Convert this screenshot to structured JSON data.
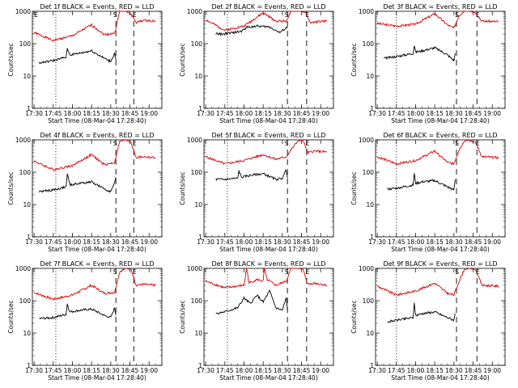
{
  "figure": {
    "start_time_label": "Start Time (08-Mar-04 17:28:40)",
    "ylabel": "Counts/sec",
    "colors": {
      "events": "#000000",
      "lld": "#dd0000",
      "axes": "#000000",
      "background": "#ffffff"
    }
  },
  "chart_data": [
    {
      "type": "line",
      "title": "Det 1f BLACK = Events, RED = LLD",
      "xlabel": "Start Time (08-Mar-04 17:28:40)",
      "ylabel": "Counts/sec",
      "x_ticks": [
        "17:30",
        "17:45",
        "18:00",
        "18:15",
        "18:30",
        "18:45",
        "19:00"
      ],
      "y_ticks": [
        "1",
        "10",
        "100",
        "1000"
      ],
      "ylim": [
        1,
        1000
      ],
      "y_scale": "log",
      "time_range": [
        "17:28:40",
        "19:10:00"
      ],
      "vlines": [
        {
          "time": "17:47",
          "style": "dotted"
        },
        {
          "time": "18:34",
          "style": "dashed"
        },
        {
          "time": "18:48",
          "style": "dashed"
        }
      ],
      "markers": [
        {
          "label": "S",
          "time": "18:34"
        },
        {
          "label": "E",
          "time": "18:48"
        },
        {
          "label": "E",
          "time": "17:31"
        }
      ],
      "series": [
        {
          "name": "LLD",
          "color": "#dd0000",
          "x": [
            "17:30",
            "17:45",
            "18:00",
            "18:15",
            "18:25",
            "18:33",
            "18:37",
            "18:42",
            "18:46",
            "18:50",
            "18:55",
            "19:05"
          ],
          "y": [
            220,
            125,
            175,
            380,
            190,
            210,
            1000,
            1000,
            800,
            450,
            520,
            500
          ]
        },
        {
          "name": "Events",
          "color": "#000000",
          "x": [
            "17:34",
            "17:45",
            "17:55",
            "17:56",
            "17:58",
            "18:05",
            "18:15",
            "18:25",
            "18:30",
            "18:33",
            "18:34"
          ],
          "y": [
            25,
            30,
            38,
            70,
            45,
            50,
            60,
            35,
            28,
            50,
            32
          ]
        }
      ]
    },
    {
      "type": "line",
      "title": "Det 2f BLACK = Events, RED = LLD",
      "xlabel": "Start Time (08-Mar-04 17:28:40)",
      "ylabel": "Counts/sec",
      "x_ticks": [
        "17:30",
        "17:45",
        "18:00",
        "18:15",
        "18:30",
        "18:45",
        "19:00"
      ],
      "y_ticks": [
        "1",
        "10",
        "100",
        "1000"
      ],
      "ylim": [
        1,
        1000
      ],
      "y_scale": "log",
      "time_range": [
        "17:28:40",
        "19:10:00"
      ],
      "vlines": [
        {
          "time": "17:47",
          "style": "dotted"
        },
        {
          "time": "18:34",
          "style": "dashed"
        },
        {
          "time": "18:49",
          "style": "dashed"
        }
      ],
      "markers": [
        {
          "label": "S",
          "time": "18:34"
        },
        {
          "label": "E",
          "time": "18:49"
        }
      ],
      "series": [
        {
          "name": "LLD",
          "color": "#dd0000",
          "x": [
            "17:30",
            "17:45",
            "18:00",
            "18:15",
            "18:25",
            "18:33",
            "18:37",
            "18:44",
            "18:48",
            "18:52",
            "18:58",
            "19:05"
          ],
          "y": [
            550,
            260,
            350,
            900,
            500,
            500,
            1000,
            1000,
            900,
            450,
            480,
            500
          ]
        },
        {
          "name": "Events",
          "color": "#000000",
          "x": [
            "17:38",
            "17:45",
            "17:58",
            "18:02",
            "18:10",
            "18:20",
            "18:28",
            "18:33",
            "18:34"
          ],
          "y": [
            200,
            200,
            240,
            320,
            350,
            330,
            220,
            300,
            340
          ]
        }
      ]
    },
    {
      "type": "line",
      "title": "Det 3f BLACK = Events, RED = LLD",
      "xlabel": "Start Time (08-Mar-04 17:28:40)",
      "ylabel": "Counts/sec",
      "x_ticks": [
        "17:30",
        "17:45",
        "18:00",
        "18:15",
        "18:30",
        "18:45",
        "19:00"
      ],
      "y_ticks": [
        "1",
        "10",
        "100",
        "1000"
      ],
      "ylim": [
        1,
        1000
      ],
      "y_scale": "log",
      "time_range": [
        "17:28:40",
        "19:10:00"
      ],
      "vlines": [
        {
          "time": "17:45",
          "style": "dotted"
        },
        {
          "time": "18:32",
          "style": "dashed"
        },
        {
          "time": "18:48",
          "style": "dashed"
        }
      ],
      "markers": [
        {
          "label": "S",
          "time": "18:33"
        },
        {
          "label": "E",
          "time": "18:48"
        }
      ],
      "series": [
        {
          "name": "LLD",
          "color": "#dd0000",
          "x": [
            "17:30",
            "17:45",
            "18:00",
            "18:15",
            "18:25",
            "18:30",
            "18:34",
            "18:38",
            "18:42",
            "18:47",
            "18:52",
            "19:05"
          ],
          "y": [
            420,
            350,
            400,
            850,
            380,
            300,
            750,
            1000,
            1000,
            900,
            500,
            480
          ]
        },
        {
          "name": "Events",
          "color": "#000000",
          "x": [
            "17:35",
            "17:45",
            "17:58",
            "17:59",
            "18:00",
            "18:05",
            "18:15",
            "18:25",
            "18:30",
            "18:31"
          ],
          "y": [
            35,
            40,
            50,
            90,
            55,
            60,
            75,
            45,
            30,
            50
          ]
        }
      ]
    },
    {
      "type": "line",
      "title": "Det 4f BLACK = Events, RED = LLD",
      "xlabel": "Start Time (08-Mar-04 17:28:40)",
      "ylabel": "Counts/sec",
      "x_ticks": [
        "17:30",
        "17:45",
        "18:00",
        "18:15",
        "18:30",
        "18:45",
        "19:00"
      ],
      "y_ticks": [
        "1",
        "10",
        "100",
        "1000"
      ],
      "ylim": [
        1,
        1000
      ],
      "y_scale": "log",
      "time_range": [
        "17:28:40",
        "19:10:00"
      ],
      "vlines": [
        {
          "time": "17:47",
          "style": "dotted"
        },
        {
          "time": "18:34",
          "style": "dashed"
        },
        {
          "time": "18:48",
          "style": "dashed"
        }
      ],
      "markers": [
        {
          "label": "S",
          "time": "18:34"
        },
        {
          "label": "E",
          "time": "18:48"
        }
      ],
      "series": [
        {
          "name": "LLD",
          "color": "#dd0000",
          "x": [
            "17:30",
            "17:45",
            "18:00",
            "18:15",
            "18:25",
            "18:33",
            "18:37",
            "18:42",
            "18:46",
            "18:50",
            "18:55",
            "19:05"
          ],
          "y": [
            220,
            120,
            160,
            350,
            170,
            200,
            900,
            1000,
            800,
            280,
            300,
            280
          ]
        },
        {
          "name": "Events",
          "color": "#000000",
          "x": [
            "17:34",
            "17:45",
            "17:55",
            "17:56",
            "17:58",
            "18:05",
            "18:15",
            "18:25",
            "18:30",
            "18:33",
            "18:34"
          ],
          "y": [
            25,
            28,
            35,
            90,
            40,
            45,
            50,
            30,
            25,
            45,
            70
          ]
        }
      ]
    },
    {
      "type": "line",
      "title": "Det 5f BLACK = Events, RED = LLD",
      "xlabel": "Start Time (08-Mar-04 17:28:40)",
      "ylabel": "Counts/sec",
      "x_ticks": [
        "17:30",
        "17:45",
        "18:00",
        "18:15",
        "18:30",
        "18:45",
        "19:00"
      ],
      "y_ticks": [
        "1",
        "10",
        "100",
        "1000"
      ],
      "ylim": [
        1,
        1000
      ],
      "y_scale": "log",
      "time_range": [
        "17:28:40",
        "19:10:00"
      ],
      "vlines": [
        {
          "time": "17:47",
          "style": "dotted"
        },
        {
          "time": "18:34",
          "style": "dashed"
        },
        {
          "time": "18:49",
          "style": "dashed"
        }
      ],
      "markers": [
        {
          "label": "S",
          "time": "18:34"
        },
        {
          "label": "E",
          "time": "18:49"
        }
      ],
      "series": [
        {
          "name": "LLD",
          "color": "#dd0000",
          "x": [
            "17:30",
            "17:45",
            "18:00",
            "18:15",
            "18:25",
            "18:33",
            "18:37",
            "18:42",
            "18:46",
            "18:50",
            "18:55",
            "19:05"
          ],
          "y": [
            300,
            180,
            230,
            350,
            250,
            300,
            500,
            900,
            1000,
            400,
            450,
            420
          ]
        },
        {
          "name": "Events",
          "color": "#000000",
          "x": [
            "17:38",
            "17:45",
            "17:55",
            "17:56",
            "17:58",
            "18:05",
            "18:15",
            "18:25",
            "18:30",
            "18:33",
            "18:34"
          ],
          "y": [
            60,
            60,
            65,
            110,
            70,
            80,
            90,
            60,
            65,
            120,
            65
          ]
        }
      ]
    },
    {
      "type": "line",
      "title": "Det 6f BLACK = Events, RED = LLD",
      "xlabel": "Start Time (08-Mar-04 17:28:40)",
      "ylabel": "Counts/sec",
      "x_ticks": [
        "17:30",
        "17:45",
        "18:00",
        "18:15",
        "18:30",
        "18:45",
        "19:00"
      ],
      "y_ticks": [
        "1",
        "10",
        "100",
        "1000"
      ],
      "ylim": [
        1,
        1000
      ],
      "y_scale": "log",
      "time_range": [
        "17:28:40",
        "19:10:00"
      ],
      "vlines": [
        {
          "time": "17:45",
          "style": "dotted"
        },
        {
          "time": "18:32",
          "style": "dashed"
        },
        {
          "time": "18:48",
          "style": "dashed"
        }
      ],
      "markers": [
        {
          "label": "S",
          "time": "18:33"
        },
        {
          "label": "E",
          "time": "18:48"
        }
      ],
      "series": [
        {
          "name": "LLD",
          "color": "#dd0000",
          "x": [
            "17:30",
            "17:45",
            "18:00",
            "18:15",
            "18:25",
            "18:30",
            "18:34",
            "18:38",
            "18:42",
            "18:47",
            "18:52",
            "19:05"
          ],
          "y": [
            300,
            180,
            230,
            450,
            200,
            180,
            500,
            900,
            1000,
            800,
            300,
            280
          ]
        },
        {
          "name": "Events",
          "color": "#000000",
          "x": [
            "17:38",
            "17:45",
            "17:58",
            "17:59",
            "18:00",
            "18:05",
            "18:15",
            "18:25",
            "18:30",
            "18:31"
          ],
          "y": [
            30,
            32,
            40,
            90,
            45,
            50,
            55,
            35,
            28,
            60
          ]
        }
      ]
    },
    {
      "type": "line",
      "title": "Det 7f BLACK = Events, RED = LLD",
      "xlabel": "Start Time (08-Mar-04 17:28:40)",
      "ylabel": "Counts/sec",
      "x_ticks": [
        "17:30",
        "17:45",
        "18:00",
        "18:15",
        "18:30",
        "18:45",
        "19:00"
      ],
      "y_ticks": [
        "1",
        "10",
        "100",
        "1000"
      ],
      "ylim": [
        1,
        1000
      ],
      "y_scale": "log",
      "time_range": [
        "17:28:40",
        "19:10:00"
      ],
      "vlines": [
        {
          "time": "17:47",
          "style": "dotted"
        },
        {
          "time": "18:34",
          "style": "dashed"
        },
        {
          "time": "18:48",
          "style": "dashed"
        }
      ],
      "markers": [
        {
          "label": "S",
          "time": "18:34"
        },
        {
          "label": "E",
          "time": "18:48"
        }
      ],
      "series": [
        {
          "name": "LLD",
          "color": "#dd0000",
          "x": [
            "17:30",
            "17:45",
            "18:00",
            "18:15",
            "18:25",
            "18:33",
            "18:37",
            "18:42",
            "18:46",
            "18:50",
            "18:55",
            "19:05"
          ],
          "y": [
            180,
            110,
            150,
            300,
            170,
            180,
            800,
            1000,
            900,
            300,
            320,
            300
          ]
        },
        {
          "name": "Events",
          "color": "#000000",
          "x": [
            "17:34",
            "17:45",
            "17:55",
            "17:56",
            "17:58",
            "18:05",
            "18:15",
            "18:25",
            "18:30",
            "18:33",
            "18:34"
          ],
          "y": [
            28,
            30,
            38,
            80,
            45,
            50,
            55,
            35,
            30,
            60,
            35
          ]
        }
      ]
    },
    {
      "type": "line",
      "title": "Det 8f BLACK = Events, RED = LLD",
      "xlabel": "Start Time (08-Mar-04 17:28:40)",
      "ylabel": "Counts/sec",
      "x_ticks": [
        "17:30",
        "17:45",
        "18:00",
        "18:15",
        "18:30",
        "18:45",
        "19:00"
      ],
      "y_ticks": [
        "1",
        "10",
        "100",
        "1000"
      ],
      "ylim": [
        1,
        1000
      ],
      "y_scale": "log",
      "time_range": [
        "17:28:40",
        "19:10:00"
      ],
      "vlines": [
        {
          "time": "17:47",
          "style": "dotted"
        },
        {
          "time": "18:34",
          "style": "dashed"
        },
        {
          "time": "18:49",
          "style": "dashed"
        }
      ],
      "markers": [
        {
          "label": "S",
          "time": "18:34"
        },
        {
          "label": "E",
          "time": "18:49"
        }
      ],
      "series": [
        {
          "name": "LLD",
          "color": "#dd0000",
          "x": [
            "17:30",
            "17:45",
            "18:00",
            "18:02",
            "18:04",
            "18:10",
            "18:15",
            "18:16",
            "18:18",
            "18:25",
            "18:33",
            "18:37",
            "18:42",
            "18:46",
            "18:50",
            "18:55",
            "19:05"
          ],
          "y": [
            400,
            250,
            300,
            1000,
            350,
            450,
            400,
            1000,
            450,
            300,
            400,
            1000,
            1000,
            950,
            320,
            350,
            300
          ]
        },
        {
          "name": "Events",
          "color": "#000000",
          "x": [
            "17:38",
            "17:45",
            "17:55",
            "18:00",
            "18:05",
            "18:10",
            "18:15",
            "18:20",
            "18:25",
            "18:30",
            "18:33",
            "18:34"
          ],
          "y": [
            40,
            45,
            60,
            120,
            80,
            150,
            90,
            200,
            60,
            50,
            120,
            50
          ]
        }
      ]
    },
    {
      "type": "line",
      "title": "Det 9f BLACK = Events, RED = LLD",
      "xlabel": "Start Time (08-Mar-04 17:28:40)",
      "ylabel": "Counts/sec",
      "x_ticks": [
        "17:30",
        "17:45",
        "18:00",
        "18:15",
        "18:30",
        "18:45",
        "19:00"
      ],
      "y_ticks": [
        "1",
        "10",
        "100",
        "1000"
      ],
      "ylim": [
        1,
        1000
      ],
      "y_scale": "log",
      "time_range": [
        "17:28:40",
        "19:10:00"
      ],
      "vlines": [
        {
          "time": "17:45",
          "style": "dotted"
        },
        {
          "time": "18:32",
          "style": "dashed"
        },
        {
          "time": "18:48",
          "style": "dashed"
        }
      ],
      "markers": [
        {
          "label": "S",
          "time": "18:33"
        },
        {
          "label": "E",
          "time": "18:48"
        }
      ],
      "series": [
        {
          "name": "LLD",
          "color": "#dd0000",
          "x": [
            "17:30",
            "17:45",
            "18:00",
            "18:15",
            "18:25",
            "18:30",
            "18:34",
            "18:38",
            "18:42",
            "18:47",
            "18:52",
            "19:05"
          ],
          "y": [
            280,
            150,
            200,
            350,
            170,
            150,
            400,
            900,
            1000,
            900,
            300,
            280
          ]
        },
        {
          "name": "Events",
          "color": "#000000",
          "x": [
            "17:38",
            "17:45",
            "17:58",
            "17:59",
            "18:00",
            "18:05",
            "18:15",
            "18:25",
            "18:30",
            "18:31"
          ],
          "y": [
            22,
            25,
            30,
            80,
            35,
            40,
            45,
            30,
            25,
            40
          ]
        }
      ]
    }
  ]
}
